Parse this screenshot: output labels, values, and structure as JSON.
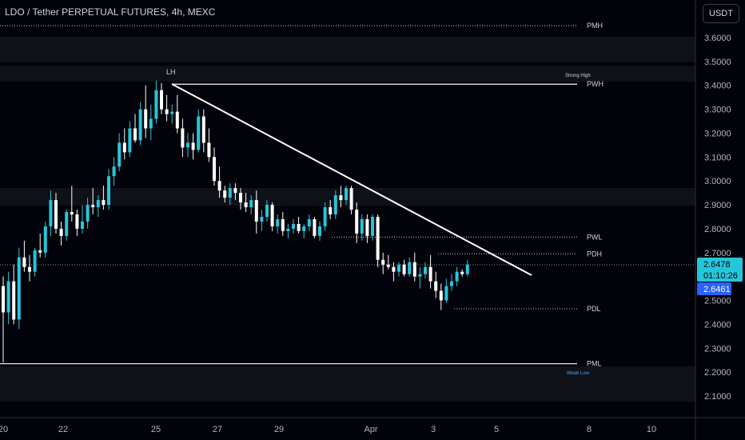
{
  "header": {
    "title": "LDO / Tether PERPETUAL FUTURES, 4h, MEXC",
    "currency": "USDT"
  },
  "colors": {
    "bg": "#02030a",
    "up": "#26c6da",
    "down": "#ffffff",
    "level": "#ffffff",
    "price_tag": "#26c6da",
    "weak_low": "#42a5f5"
  },
  "chart_data": {
    "type": "candlestick",
    "title": "LDO / Tether PERPETUAL FUTURES, 4h, MEXC",
    "ylim": [
      2.04,
      3.72
    ],
    "y_ticks": [
      "3.6000",
      "3.5000",
      "3.4000",
      "3.3000",
      "3.2000",
      "3.1000",
      "3.0000",
      "2.9000",
      "2.8000",
      "2.7000",
      "2.6000",
      "2.5000",
      "2.4000",
      "2.3000",
      "2.2000",
      "2.1000"
    ],
    "x_ticks": [
      "20",
      "22",
      "25",
      "27",
      "29",
      "Apr",
      "3",
      "5",
      "8",
      "10"
    ],
    "current_price": "2.6478",
    "countdown": "01:10:26",
    "marker_price": "2.6461",
    "levels": [
      {
        "label": "PWH",
        "price": 3.405,
        "style": "solid"
      },
      {
        "label": "PMH",
        "price": 3.65,
        "style": "dotted"
      },
      {
        "label": "PWL",
        "price": 2.765,
        "style": "dotted"
      },
      {
        "label": "PDH",
        "price": 2.695,
        "style": "dotted"
      },
      {
        "label": "PDL",
        "price": 2.465,
        "style": "dotted"
      },
      {
        "label": "PML",
        "price": 2.235,
        "style": "solid"
      }
    ],
    "annotations": {
      "lh": "LH",
      "strong_high": "Strong High",
      "weak_low": "Weak Low"
    },
    "trendline": {
      "from": {
        "x": "25",
        "price": 3.41
      },
      "to": {
        "x": "5",
        "price": 2.56
      }
    },
    "candles": [
      [
        2.56,
        2.6,
        2.24,
        2.45
      ],
      [
        2.45,
        2.62,
        2.4,
        2.58
      ],
      [
        2.58,
        2.65,
        2.4,
        2.42
      ],
      [
        2.42,
        2.72,
        2.38,
        2.68
      ],
      [
        2.68,
        2.75,
        2.62,
        2.64
      ],
      [
        2.64,
        2.69,
        2.58,
        2.62
      ],
      [
        2.62,
        2.72,
        2.6,
        2.71
      ],
      [
        2.71,
        2.78,
        2.68,
        2.7
      ],
      [
        2.7,
        2.83,
        2.68,
        2.81
      ],
      [
        2.81,
        2.96,
        2.77,
        2.92
      ],
      [
        2.92,
        2.95,
        2.78,
        2.8
      ],
      [
        2.8,
        2.83,
        2.73,
        2.77
      ],
      [
        2.77,
        2.88,
        2.75,
        2.87
      ],
      [
        2.87,
        2.98,
        2.83,
        2.86
      ],
      [
        2.86,
        2.88,
        2.77,
        2.8
      ],
      [
        2.8,
        2.9,
        2.78,
        2.83
      ],
      [
        2.83,
        2.93,
        2.8,
        2.9
      ],
      [
        2.9,
        2.97,
        2.86,
        2.89
      ],
      [
        2.89,
        2.94,
        2.85,
        2.92
      ],
      [
        2.92,
        2.98,
        2.88,
        2.9
      ],
      [
        2.9,
        3.05,
        2.88,
        3.02
      ],
      [
        3.02,
        3.1,
        2.98,
        3.06
      ],
      [
        3.06,
        3.2,
        3.04,
        3.16
      ],
      [
        3.16,
        3.22,
        3.09,
        3.12
      ],
      [
        3.12,
        3.25,
        3.1,
        3.22
      ],
      [
        3.22,
        3.28,
        3.16,
        3.17
      ],
      [
        3.17,
        3.33,
        3.15,
        3.3
      ],
      [
        3.3,
        3.4,
        3.18,
        3.22
      ],
      [
        3.22,
        3.32,
        3.17,
        3.26
      ],
      [
        3.26,
        3.42,
        3.24,
        3.38
      ],
      [
        3.38,
        3.41,
        3.28,
        3.3
      ],
      [
        3.3,
        3.36,
        3.25,
        3.28
      ],
      [
        3.28,
        3.32,
        3.24,
        3.29
      ],
      [
        3.29,
        3.36,
        3.2,
        3.22
      ],
      [
        3.22,
        3.26,
        3.1,
        3.14
      ],
      [
        3.14,
        3.2,
        3.1,
        3.16
      ],
      [
        3.16,
        3.2,
        3.09,
        3.13
      ],
      [
        3.13,
        3.3,
        3.12,
        3.27
      ],
      [
        3.27,
        3.3,
        3.12,
        3.16
      ],
      [
        3.16,
        3.22,
        3.08,
        3.1
      ],
      [
        3.1,
        3.14,
        2.98,
        3.0
      ],
      [
        3.0,
        3.06,
        2.93,
        2.96
      ],
      [
        2.96,
        2.98,
        2.91,
        2.93
      ],
      [
        2.93,
        2.99,
        2.9,
        2.97
      ],
      [
        2.97,
        2.99,
        2.92,
        2.95
      ],
      [
        2.95,
        2.97,
        2.88,
        2.91
      ],
      [
        2.91,
        2.95,
        2.87,
        2.89
      ],
      [
        2.89,
        2.94,
        2.86,
        2.92
      ],
      [
        2.92,
        2.96,
        2.78,
        2.83
      ],
      [
        2.83,
        2.88,
        2.79,
        2.85
      ],
      [
        2.85,
        2.92,
        2.83,
        2.9
      ],
      [
        2.9,
        2.91,
        2.79,
        2.81
      ],
      [
        2.81,
        2.86,
        2.78,
        2.84
      ],
      [
        2.84,
        2.87,
        2.77,
        2.79
      ],
      [
        2.79,
        2.82,
        2.76,
        2.8
      ],
      [
        2.8,
        2.84,
        2.78,
        2.82
      ],
      [
        2.82,
        2.85,
        2.78,
        2.79
      ],
      [
        2.79,
        2.82,
        2.76,
        2.81
      ],
      [
        2.81,
        2.86,
        2.79,
        2.84
      ],
      [
        2.84,
        2.85,
        2.76,
        2.77
      ],
      [
        2.77,
        2.83,
        2.75,
        2.81
      ],
      [
        2.81,
        2.91,
        2.79,
        2.89
      ],
      [
        2.89,
        2.92,
        2.84,
        2.86
      ],
      [
        2.86,
        2.96,
        2.84,
        2.94
      ],
      [
        2.94,
        2.98,
        2.89,
        2.92
      ],
      [
        2.92,
        2.98,
        2.9,
        2.97
      ],
      [
        2.97,
        2.98,
        2.86,
        2.88
      ],
      [
        2.88,
        2.91,
        2.74,
        2.78
      ],
      [
        2.78,
        2.86,
        2.75,
        2.84
      ],
      [
        2.84,
        2.86,
        2.74,
        2.77
      ],
      [
        2.77,
        2.86,
        2.75,
        2.85
      ],
      [
        2.85,
        2.86,
        2.64,
        2.67
      ],
      [
        2.67,
        2.7,
        2.61,
        2.65
      ],
      [
        2.65,
        2.69,
        2.63,
        2.64
      ],
      [
        2.64,
        2.66,
        2.58,
        2.62
      ],
      [
        2.62,
        2.66,
        2.6,
        2.65
      ],
      [
        2.65,
        2.67,
        2.6,
        2.61
      ],
      [
        2.61,
        2.68,
        2.6,
        2.66
      ],
      [
        2.66,
        2.7,
        2.58,
        2.6
      ],
      [
        2.6,
        2.64,
        2.55,
        2.61
      ],
      [
        2.61,
        2.66,
        2.59,
        2.64
      ],
      [
        2.64,
        2.69,
        2.55,
        2.58
      ],
      [
        2.58,
        2.62,
        2.51,
        2.54
      ],
      [
        2.54,
        2.57,
        2.46,
        2.5
      ],
      [
        2.5,
        2.59,
        2.49,
        2.56
      ],
      [
        2.56,
        2.61,
        2.54,
        2.58
      ],
      [
        2.58,
        2.64,
        2.56,
        2.62
      ],
      [
        2.62,
        2.63,
        2.6,
        2.61
      ],
      [
        2.61,
        2.67,
        2.6,
        2.65
      ]
    ]
  }
}
